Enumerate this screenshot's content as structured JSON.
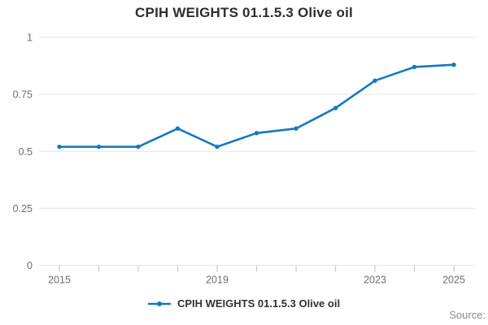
{
  "window": {
    "background": "#ffffff"
  },
  "legend": {
    "label": "CPIH WEIGHTS 01.1.5.3 Olive oil"
  },
  "source": {
    "label": "Source:"
  },
  "colors": {
    "line": "#1479be",
    "grid": "#e6e6e6",
    "tick": "#c3cade",
    "axis_text": "#6e6e6e",
    "title_text": "#2e2e2e",
    "legend_text": "#333333",
    "source_text": "#8a8a8a"
  },
  "chart_data": {
    "type": "line",
    "title": "CPIH WEIGHTS 01.1.5.3 Olive oil",
    "x": [
      2015,
      2016,
      2017,
      2018,
      2019,
      2020,
      2021,
      2022,
      2023,
      2024,
      2025
    ],
    "series": [
      {
        "name": "CPIH WEIGHTS 01.1.5.3 Olive oil",
        "values": [
          0.52,
          0.52,
          0.52,
          0.6,
          0.52,
          0.58,
          0.6,
          0.69,
          0.81,
          0.87,
          0.88
        ]
      }
    ],
    "xlabel": "",
    "ylabel": "",
    "ylim": [
      0,
      1
    ],
    "y_ticks": [
      1,
      0.75,
      0.5,
      0.25,
      0
    ],
    "y_tick_labels": [
      "1",
      "0.75",
      "0.5",
      "0.25",
      "0"
    ],
    "x_tick_labels_shown": [
      "2015",
      "2019",
      "2023",
      "2025"
    ],
    "grid": true,
    "marker": "circle",
    "legend_position": "bottom"
  }
}
